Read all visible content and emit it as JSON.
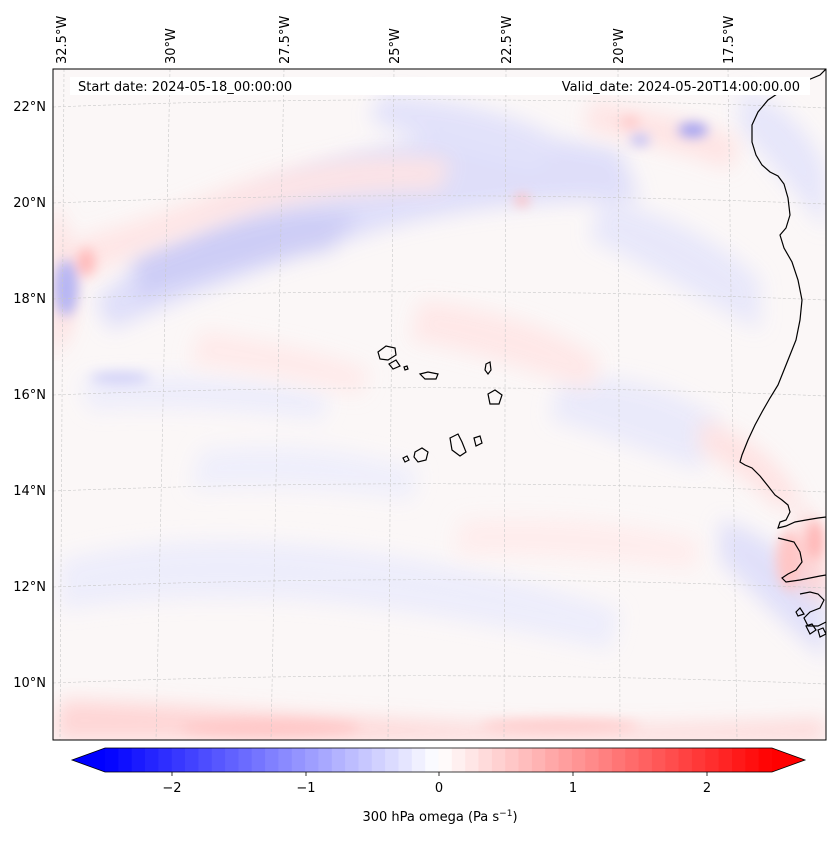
{
  "map": {
    "start_date": "Start date: 2024-05-18_00:00:00",
    "valid_date": "Valid_date: 2024-05-20T14:00:00.00",
    "lon_labels": [
      "32.5°W",
      "30°W",
      "27.5°W",
      "25°W",
      "22.5°W",
      "20°W",
      "17.5°W"
    ],
    "lat_labels": [
      "22°N",
      "20°N",
      "18°N",
      "16°N",
      "14°N",
      "12°N",
      "10°N"
    ]
  },
  "colorbar": {
    "ticks": [
      "−2",
      "−1",
      "0",
      "1",
      "2"
    ],
    "label_main": "300 hPa omega (Pa s",
    "label_sup": "−1",
    "label_end": ")",
    "min": -2.6,
    "max": 2.6,
    "colors": {
      "negative": "#0000ff",
      "zero": "#ffffff",
      "positive": "#ff0000"
    }
  }
}
